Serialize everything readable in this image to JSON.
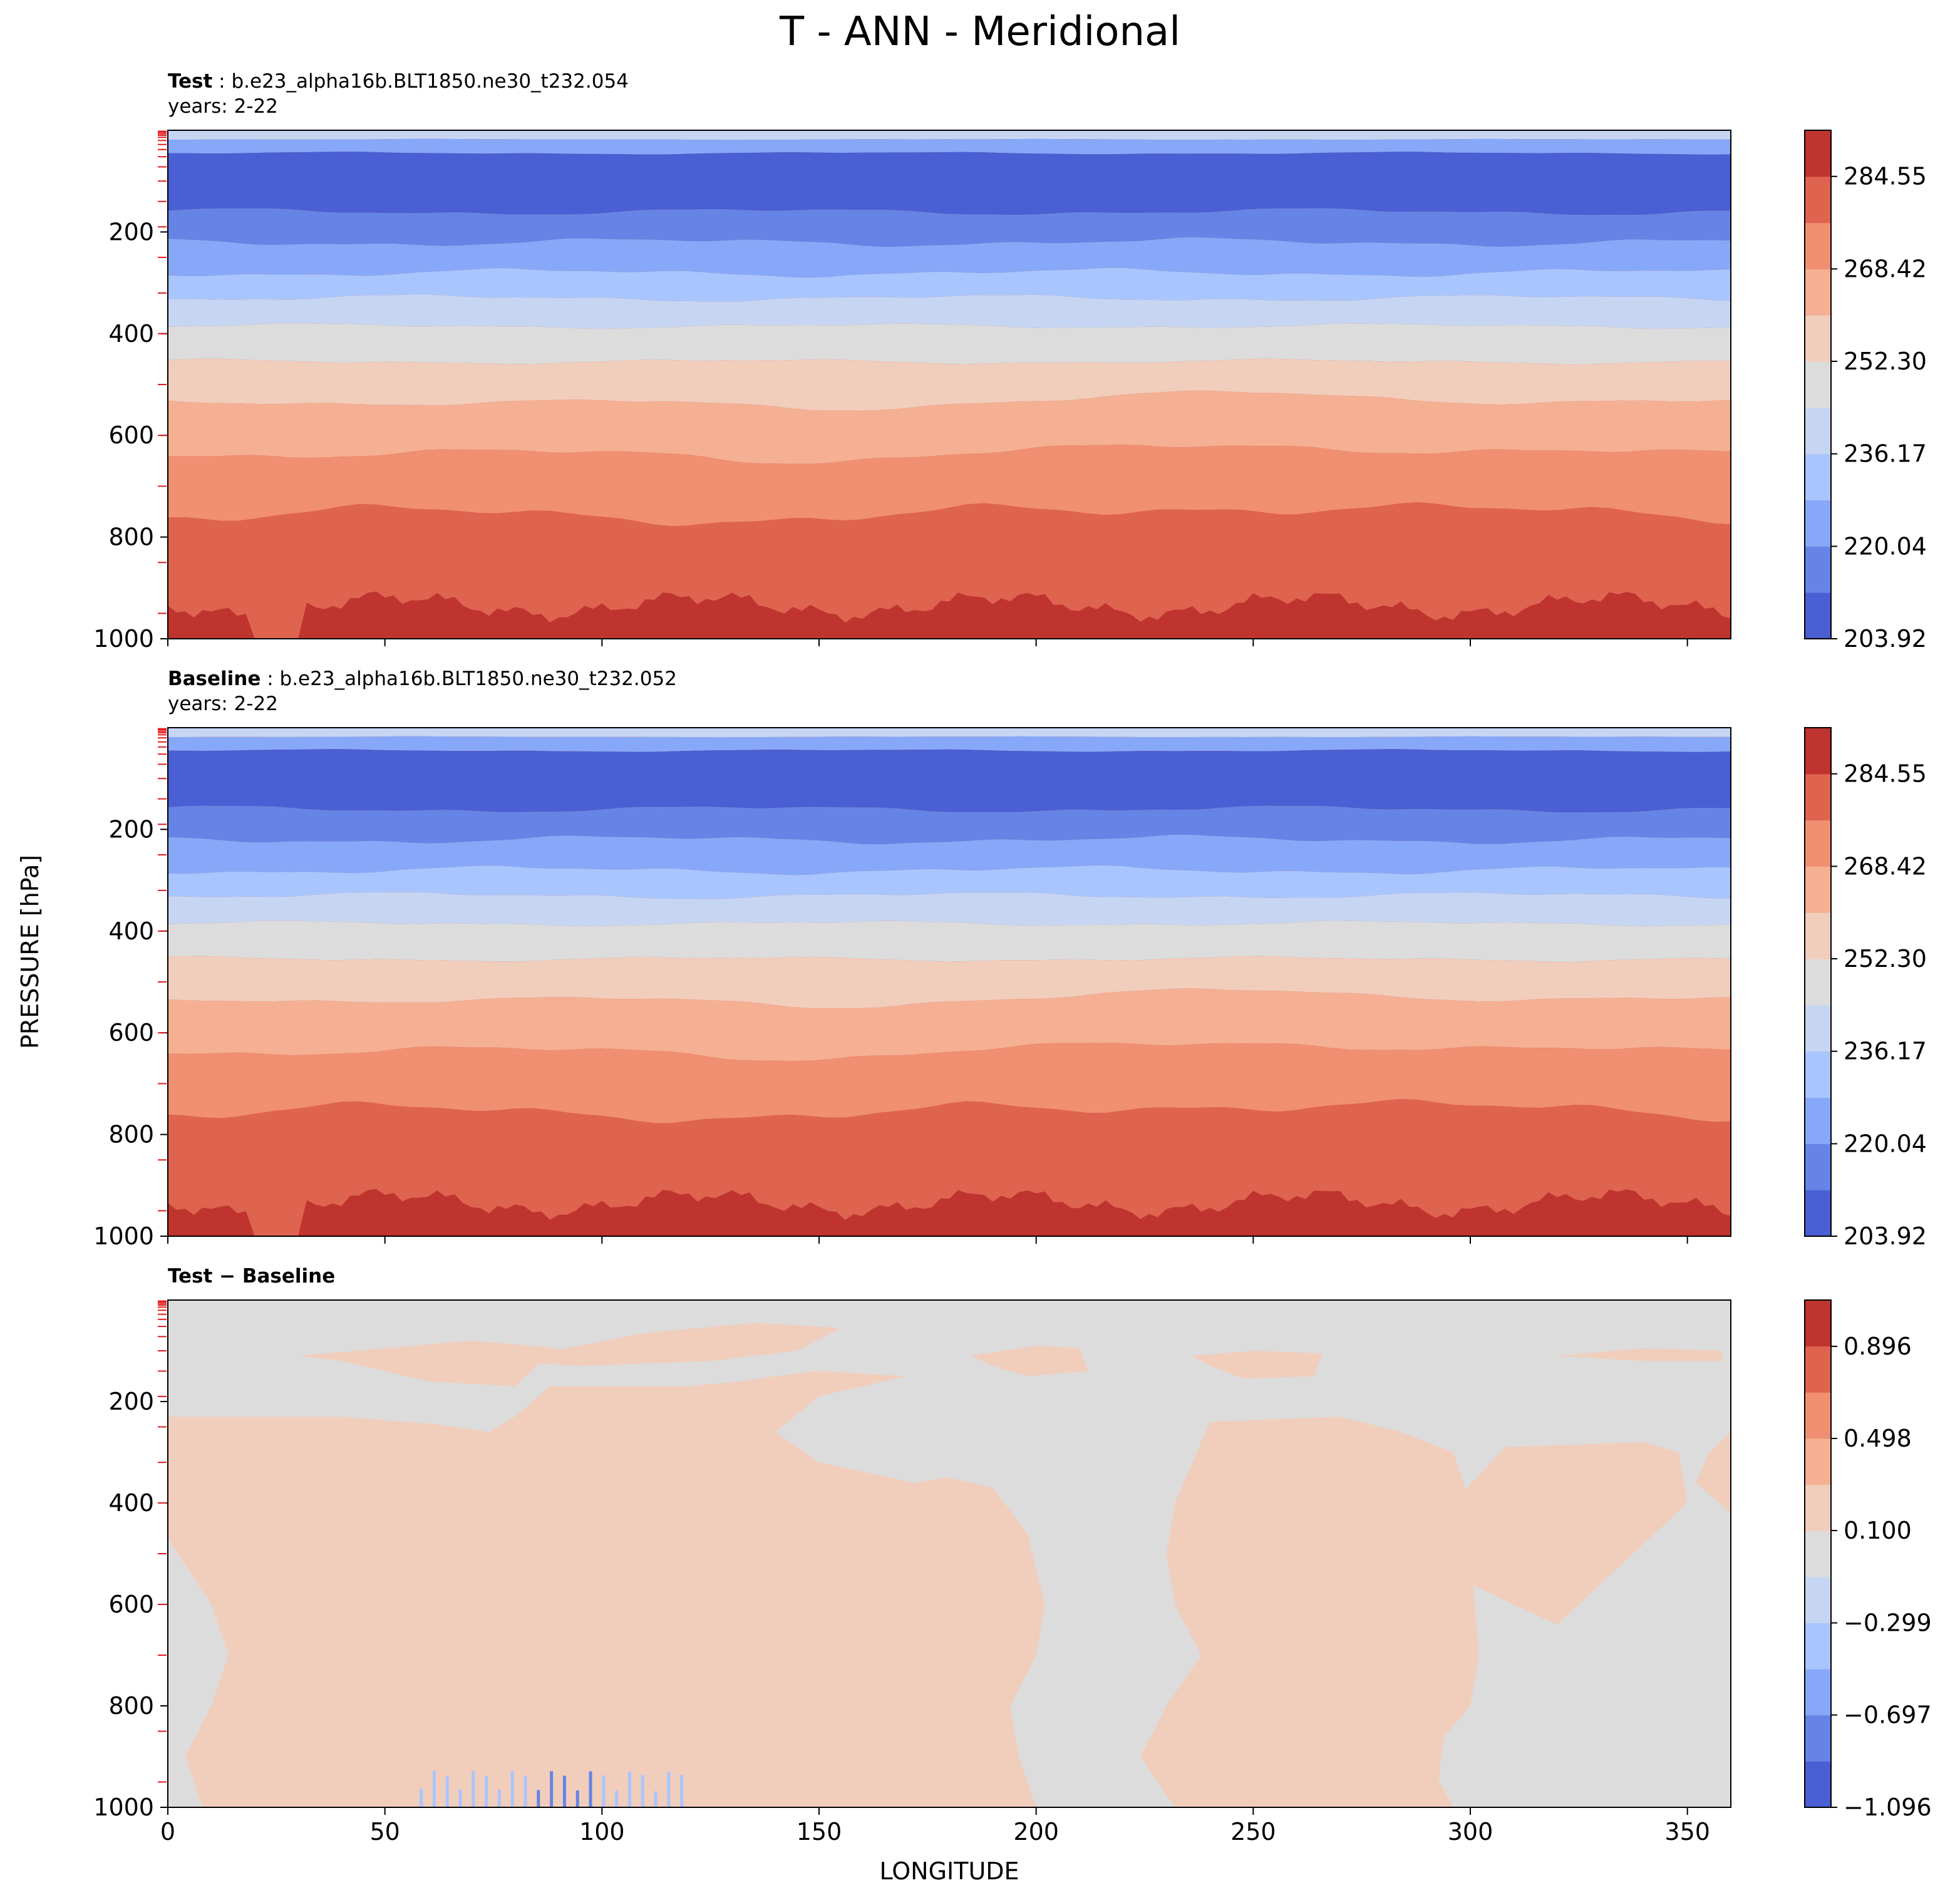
{
  "figure": {
    "title": "T - ANN - Meridional",
    "ylabel": "PRESSURE [hPa]",
    "xlabel": "LONGITUDE"
  },
  "panels": {
    "test": {
      "label_bold": "Test",
      "label_rest": " : b.e23_alpha16b.BLT1850.ne30_t232.054",
      "years": "years: 2-22"
    },
    "baseline": {
      "label_bold": "Baseline",
      "label_rest": " : b.e23_alpha16b.BLT1850.ne30_t232.052",
      "years": "years: 2-22"
    },
    "diff": {
      "label_bold": "Test − Baseline"
    }
  },
  "chart_data": [
    {
      "type": "heatmap",
      "name": "Test",
      "xlim": [
        0,
        360
      ],
      "ylim": [
        1000,
        0
      ],
      "x_ticks": [
        0,
        50,
        100,
        150,
        200,
        250,
        300,
        350
      ],
      "y_ticks": [
        200,
        400,
        600,
        800,
        1000
      ],
      "level_boundaries": [
        203.92,
        212.0,
        220.04,
        228.1,
        236.17,
        244.23,
        252.3,
        260.36,
        268.42,
        276.49,
        284.55,
        292.6
      ],
      "colorbar_ticks": [
        "203.92",
        "220.04",
        "236.17",
        "252.30",
        "268.42",
        "284.55"
      ],
      "colors": [
        "#4a5fd3",
        "#6584e6",
        "#87a8f8",
        "#a9c5fd",
        "#c6d6f2",
        "#dcdcdc",
        "#f1cdbc",
        "#f5b093",
        "#f08f71",
        "#df6450",
        "#c03430"
      ],
      "band_tops_hPa": {
        "top_band": [
          0,
          20
        ],
        "200K": [
          45,
          160
        ],
        "220K": [
          160,
          220
        ],
        "228K": [
          220,
          280
        ],
        "236K": [
          280,
          330
        ],
        "244K": [
          330,
          385
        ],
        "252K": [
          385,
          455
        ],
        "260K": [
          455,
          535
        ],
        "268K": [
          535,
          635
        ],
        "276K": [
          635,
          750
        ],
        "284K": [
          750,
          930
        ]
      }
    },
    {
      "type": "heatmap",
      "name": "Baseline",
      "xlim": [
        0,
        360
      ],
      "ylim": [
        1000,
        0
      ],
      "x_ticks": [
        0,
        50,
        100,
        150,
        200,
        250,
        300,
        350
      ],
      "y_ticks": [
        200,
        400,
        600,
        800,
        1000
      ],
      "level_boundaries": [
        203.92,
        212.0,
        220.04,
        228.1,
        236.17,
        244.23,
        252.3,
        260.36,
        268.42,
        276.49,
        284.55,
        292.6
      ],
      "colorbar_ticks": [
        "203.92",
        "220.04",
        "236.17",
        "252.30",
        "268.42",
        "284.55"
      ],
      "colors": [
        "#4a5fd3",
        "#6584e6",
        "#87a8f8",
        "#a9c5fd",
        "#c6d6f2",
        "#dcdcdc",
        "#f1cdbc",
        "#f5b093",
        "#f08f71",
        "#df6450",
        "#c03430"
      ]
    },
    {
      "type": "heatmap",
      "name": "Test − Baseline",
      "xlim": [
        0,
        360
      ],
      "ylim": [
        1000,
        0
      ],
      "x_ticks": [
        0,
        50,
        100,
        150,
        200,
        250,
        300,
        350
      ],
      "x_tick_labels": [
        "0",
        "50",
        "100",
        "150",
        "200",
        "250",
        "300",
        "350"
      ],
      "y_ticks": [
        200,
        400,
        600,
        800,
        1000
      ],
      "level_boundaries": [
        -1.096,
        -0.896,
        -0.697,
        -0.498,
        -0.299,
        -0.1,
        0.1,
        0.299,
        0.498,
        0.697,
        0.896,
        1.096
      ],
      "colorbar_ticks": [
        "−1.096",
        "−0.697",
        "−0.299",
        "0.100",
        "0.498",
        "0.896"
      ],
      "colors": [
        "#4a5fd3",
        "#6584e6",
        "#87a8f8",
        "#a9c5fd",
        "#c6d6f2",
        "#dcdcdc",
        "#f1cdbc",
        "#f5b093",
        "#f08f71",
        "#df6450",
        "#c03430"
      ],
      "background_color": "#dcdcdc",
      "positive_color": "#f1cdbc",
      "negative_color": "#87a8f8",
      "positive_regions": [
        {
          "x": [
            0,
            72,
            74,
            86,
            100,
            118,
            130,
            120,
            100,
            88,
            74,
            55,
            42,
            28,
            10,
            3,
            0
          ],
          "y": [
            200,
            230,
            265,
            295,
            365,
            430,
            450,
            590,
            630,
            650,
            700,
            740,
            790,
            850,
            920,
            980,
            1000
          ],
          "note": "not-rendered-as-text"
        }
      ]
    }
  ]
}
